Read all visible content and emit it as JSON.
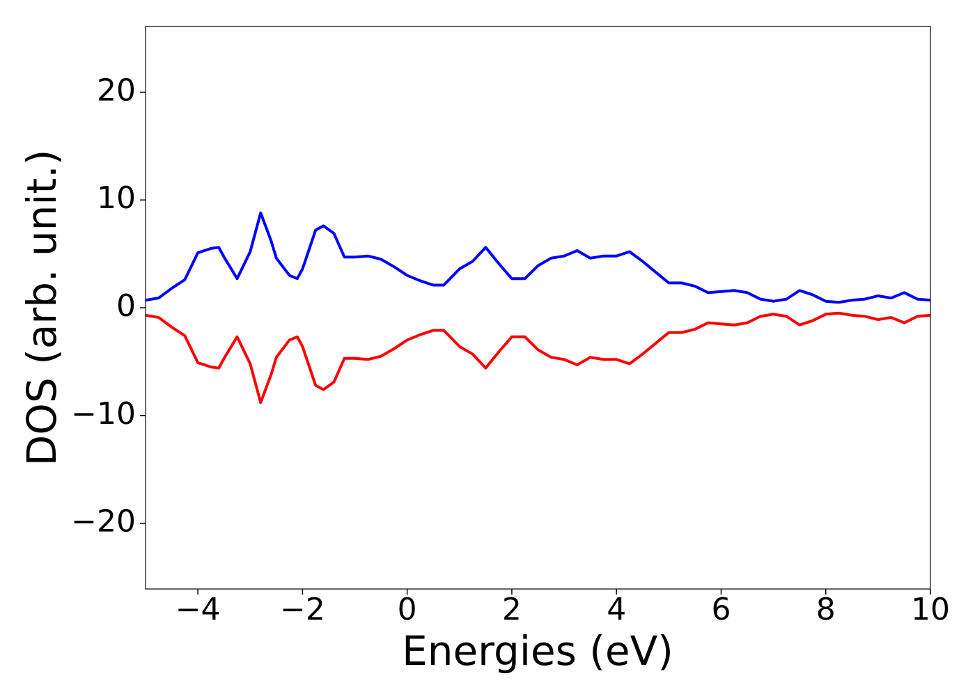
{
  "chart_data": {
    "type": "line",
    "xlabel": "Energies (eV)",
    "ylabel": "DOS (arb. unit.)",
    "x": [
      -5,
      -4.75,
      -4.5,
      -4.25,
      -4,
      -3.75,
      -3.6,
      -3.5,
      -3.25,
      -3,
      -2.8,
      -2.6,
      -2.5,
      -2.25,
      -2.1,
      -2,
      -1.75,
      -1.6,
      -1.4,
      -1.2,
      -1,
      -0.75,
      -0.5,
      -0.25,
      0,
      0.25,
      0.5,
      0.7,
      1,
      1.25,
      1.5,
      1.75,
      2,
      2.25,
      2.5,
      2.75,
      3,
      3.25,
      3.5,
      3.75,
      4,
      4.25,
      4.5,
      4.75,
      5,
      5.25,
      5.5,
      5.75,
      6,
      6.25,
      6.5,
      6.75,
      7,
      7.25,
      7.5,
      7.75,
      8,
      8.25,
      8.5,
      8.75,
      9,
      9.25,
      9.5,
      9.75,
      10
    ],
    "series": [
      {
        "color": "#0000ff",
        "values": [
          0.7,
          0.9,
          1.8,
          2.6,
          5.1,
          5.5,
          5.6,
          4.7,
          2.7,
          5.2,
          8.8,
          6.2,
          4.6,
          3.0,
          2.7,
          3.6,
          7.2,
          7.6,
          6.9,
          4.7,
          4.7,
          4.8,
          4.5,
          3.8,
          3.0,
          2.5,
          2.1,
          2.1,
          3.6,
          4.3,
          5.6,
          4.1,
          2.7,
          2.7,
          3.9,
          4.6,
          4.8,
          5.3,
          4.6,
          4.8,
          4.8,
          5.2,
          4.3,
          3.3,
          2.3,
          2.3,
          2.0,
          1.4,
          1.5,
          1.6,
          1.4,
          0.8,
          0.6,
          0.8,
          1.6,
          1.2,
          0.6,
          0.5,
          0.7,
          0.8,
          1.1,
          0.9,
          1.4,
          0.8,
          0.7
        ]
      },
      {
        "color": "#ff0000",
        "values": [
          -0.7,
          -0.9,
          -1.8,
          -2.6,
          -5.1,
          -5.5,
          -5.6,
          -4.7,
          -2.7,
          -5.2,
          -8.8,
          -6.2,
          -4.6,
          -3.0,
          -2.7,
          -3.6,
          -7.2,
          -7.6,
          -6.9,
          -4.7,
          -4.7,
          -4.8,
          -4.5,
          -3.8,
          -3.0,
          -2.5,
          -2.1,
          -2.1,
          -3.6,
          -4.3,
          -5.6,
          -4.1,
          -2.7,
          -2.7,
          -3.9,
          -4.6,
          -4.8,
          -5.3,
          -4.6,
          -4.8,
          -4.8,
          -5.2,
          -4.3,
          -3.3,
          -2.3,
          -2.3,
          -2.0,
          -1.4,
          -1.5,
          -1.6,
          -1.4,
          -0.8,
          -0.6,
          -0.8,
          -1.6,
          -1.2,
          -0.6,
          -0.5,
          -0.7,
          -0.8,
          -1.1,
          -0.9,
          -1.4,
          -0.8,
          -0.7
        ]
      }
    ],
    "xlim": [
      -5,
      10
    ],
    "xticks": [
      {
        "value": -4,
        "label": "−4"
      },
      {
        "value": -2,
        "label": "−2"
      },
      0,
      2,
      4,
      6,
      8,
      10
    ],
    "ylim": [
      -26.1,
      26.1
    ],
    "yticks": [
      {
        "value": -20,
        "label": "−20"
      },
      {
        "value": -10,
        "label": "−10"
      },
      0,
      10,
      20
    ],
    "grid": false
  }
}
